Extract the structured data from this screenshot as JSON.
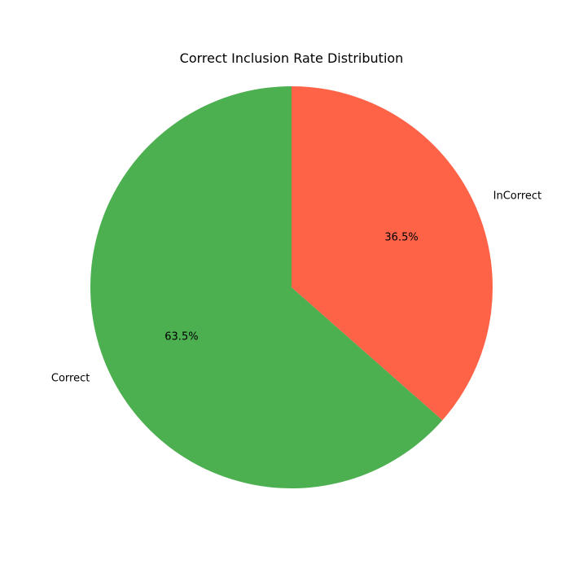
{
  "chart_data": {
    "type": "pie",
    "title": "Correct Inclusion Rate Distribution",
    "categories": [
      "InCorrect",
      "Correct"
    ],
    "values": [
      36.5,
      63.5
    ],
    "percent_labels": [
      "36.5%",
      "63.5%"
    ],
    "colors": [
      "#ff6347",
      "#4caf50"
    ],
    "start_angle_deg": 90,
    "direction": "clockwise",
    "legend": "none"
  }
}
